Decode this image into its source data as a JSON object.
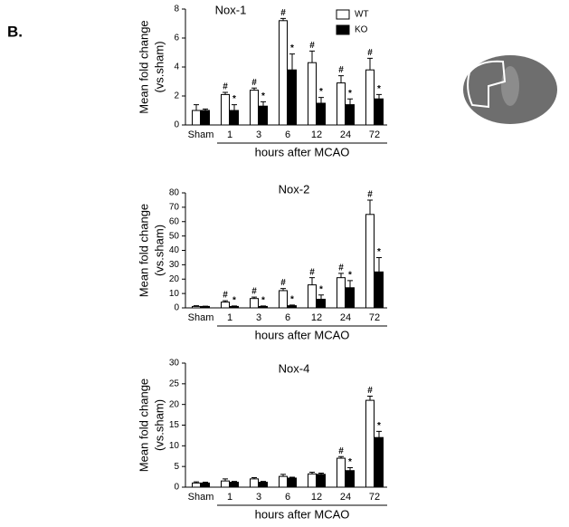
{
  "panel_label": "B.",
  "chart_data": [
    {
      "type": "bar",
      "title": "Nox-1",
      "y_label": [
        "Mean fold change",
        "(vs.sham)"
      ],
      "x_label": "hours after MCAO",
      "categories": [
        "Sham",
        "1",
        "3",
        "6",
        "12",
        "24",
        "72"
      ],
      "series": [
        {
          "name": "WT",
          "color": "#ffffff",
          "values": [
            1.0,
            2.1,
            2.4,
            7.2,
            4.3,
            2.9,
            3.8
          ],
          "errors": [
            0.4,
            0.15,
            0.15,
            0.15,
            0.8,
            0.5,
            0.8
          ],
          "markers": [
            null,
            "#",
            "#",
            "#",
            "#",
            "#",
            "#"
          ]
        },
        {
          "name": "KO",
          "color": "#000000",
          "values": [
            1.0,
            1.0,
            1.3,
            3.8,
            1.5,
            1.4,
            1.8
          ],
          "errors": [
            0.1,
            0.4,
            0.3,
            1.1,
            0.4,
            0.4,
            0.3
          ],
          "markers": [
            null,
            "*",
            "*",
            "*",
            "*",
            "*",
            "*"
          ]
        }
      ],
      "ylim": [
        0,
        8
      ],
      "yticks": [
        0,
        2,
        4,
        6,
        8
      ],
      "legend": "upper right"
    },
    {
      "type": "bar",
      "title": "Nox-2",
      "y_label": [
        "Mean fold change",
        "(vs.sham)"
      ],
      "x_label": "hours after MCAO",
      "categories": [
        "Sham",
        "1",
        "3",
        "6",
        "12",
        "24",
        "72"
      ],
      "series": [
        {
          "name": "WT",
          "color": "#ffffff",
          "values": [
            1,
            4,
            6.5,
            12,
            16,
            21,
            65
          ],
          "errors": [
            0.5,
            1,
            1,
            1.5,
            5,
            3,
            10
          ],
          "markers": [
            null,
            "#",
            "#",
            "#",
            "#",
            "#",
            "#"
          ]
        },
        {
          "name": "KO",
          "color": "#000000",
          "values": [
            1,
            1,
            1,
            1.5,
            6,
            14,
            25
          ],
          "errors": [
            0.2,
            0.3,
            0.3,
            0.5,
            3,
            5,
            10
          ],
          "markers": [
            null,
            "*",
            "*",
            "*",
            "*",
            "*",
            "*"
          ]
        }
      ],
      "ylim": [
        0,
        80
      ],
      "yticks": [
        0,
        10,
        20,
        30,
        40,
        50,
        60,
        70,
        80
      ]
    },
    {
      "type": "bar",
      "title": "Nox-4",
      "y_label": [
        "Mean fold change",
        "(vs.sham)"
      ],
      "x_label": "hours after MCAO",
      "categories": [
        "Sham",
        "1",
        "3",
        "6",
        "12",
        "24",
        "72"
      ],
      "series": [
        {
          "name": "WT",
          "color": "#ffffff",
          "values": [
            1,
            1.5,
            2.0,
            2.6,
            3.2,
            7,
            21
          ],
          "errors": [
            0.3,
            0.5,
            0.3,
            0.5,
            0.4,
            0.4,
            1
          ],
          "markers": [
            null,
            null,
            null,
            null,
            null,
            "#",
            "#"
          ]
        },
        {
          "name": "KO",
          "color": "#000000",
          "values": [
            1,
            1.2,
            1.2,
            2.2,
            3.1,
            4,
            12
          ],
          "errors": [
            0.2,
            0.2,
            0.2,
            0.2,
            0.3,
            0.7,
            1.5
          ],
          "markers": [
            null,
            null,
            null,
            null,
            null,
            "*",
            "*"
          ]
        }
      ],
      "ylim": [
        0,
        30
      ],
      "yticks": [
        0,
        5,
        10,
        15,
        20,
        25,
        30
      ]
    }
  ]
}
